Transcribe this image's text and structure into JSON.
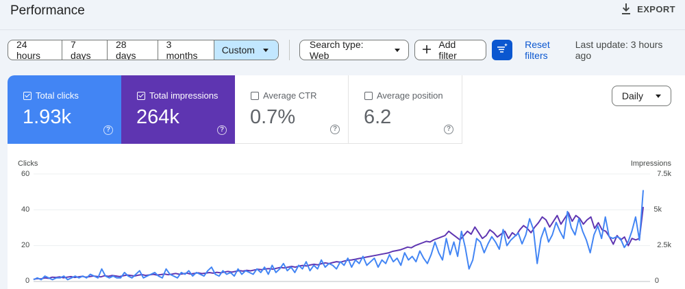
{
  "header": {
    "title": "Performance",
    "export_label": "EXPORT"
  },
  "toolbar": {
    "ranges": [
      "24 hours",
      "7 days",
      "28 days",
      "3 months"
    ],
    "custom_label": "Custom",
    "search_type": "Search type: Web",
    "add_filter": "Add filter",
    "reset_filters": "Reset filters",
    "last_update": "Last update: 3 hours ago"
  },
  "metrics": {
    "clicks": {
      "label": "Total clicks",
      "value": "1.93k",
      "checked": true,
      "color": "#4285f4"
    },
    "impressions": {
      "label": "Total impressions",
      "value": "264k",
      "checked": true,
      "color": "#5e35b1"
    },
    "ctr": {
      "label": "Average CTR",
      "value": "0.7%",
      "checked": false
    },
    "position": {
      "label": "Average position",
      "value": "6.2",
      "checked": false
    }
  },
  "granularity": "Daily",
  "chart_data": {
    "type": "line",
    "left_axis": {
      "label": "Clicks",
      "ticks": [
        "60",
        "40",
        "20",
        "0"
      ],
      "ylim": [
        0,
        60
      ]
    },
    "right_axis": {
      "label": "Impressions",
      "ticks": [
        "7.5k",
        "5k",
        "2.5k",
        "0"
      ],
      "ylim": [
        0,
        7500
      ]
    },
    "series": [
      {
        "axis": "left",
        "color": "#4285f4",
        "values": [
          1,
          2,
          1,
          3,
          2,
          1,
          2,
          2,
          3,
          1,
          2,
          3,
          2,
          3,
          2,
          4,
          3,
          2,
          7,
          3,
          2,
          3,
          2,
          2,
          5,
          3,
          2,
          4,
          6,
          2,
          3,
          4,
          5,
          3,
          2,
          7,
          4,
          3,
          2,
          5,
          4,
          6,
          3,
          5,
          4,
          3,
          6,
          8,
          4,
          3,
          6,
          4,
          5,
          3,
          7,
          4,
          6,
          5,
          4,
          7,
          5,
          8,
          4,
          9,
          5,
          7,
          10,
          6,
          8,
          5,
          9,
          7,
          11,
          6,
          9,
          7,
          12,
          8,
          10,
          9,
          7,
          11,
          9,
          13,
          8,
          12,
          10,
          14,
          9,
          11,
          13,
          8,
          12,
          10,
          15,
          11,
          13,
          9,
          16,
          12,
          14,
          11,
          17,
          13,
          10,
          15,
          22,
          16,
          12,
          24,
          15,
          22,
          14,
          28,
          19,
          7,
          12,
          24,
          22,
          16,
          21,
          25,
          22,
          18,
          29,
          20,
          23,
          25,
          27,
          21,
          26,
          35,
          29,
          10,
          24,
          30,
          22,
          26,
          33,
          28,
          24,
          39,
          30,
          26,
          35,
          28,
          23,
          16,
          26,
          31,
          24,
          36,
          25,
          24,
          25,
          24,
          19,
          22,
          28,
          36,
          23,
          51
        ]
      },
      {
        "axis": "right",
        "color": "#5e35b1",
        "values": [
          150,
          200,
          180,
          250,
          220,
          300,
          280,
          320,
          260,
          300,
          340,
          280,
          320,
          360,
          300,
          340,
          380,
          350,
          320,
          400,
          360,
          420,
          380,
          340,
          400,
          450,
          420,
          380,
          440,
          480,
          420,
          460,
          500,
          450,
          480,
          520,
          470,
          510,
          560,
          500,
          540,
          580,
          520,
          560,
          600,
          550,
          580,
          620,
          580,
          640,
          600,
          660,
          700,
          650,
          700,
          760,
          720,
          780,
          740,
          800,
          850,
          820,
          880,
          900,
          860,
          920,
          980,
          940,
          1000,
          1050,
          1000,
          1080,
          1120,
          1080,
          1150,
          1200,
          1160,
          1240,
          1300,
          1250,
          1320,
          1380,
          1340,
          1420,
          1480,
          1500,
          1550,
          1600,
          1650,
          1700,
          1750,
          1800,
          1850,
          1900,
          1950,
          2000,
          2100,
          2150,
          2200,
          2300,
          2400,
          2350,
          2500,
          2600,
          2700,
          2800,
          2750,
          2900,
          3000,
          3100,
          3200,
          3500,
          3300,
          3100,
          2900,
          3200,
          3500,
          3300,
          3800,
          3400,
          3000,
          3200,
          3600,
          3400,
          3100,
          3300,
          3500,
          3000,
          3400,
          3200,
          3600,
          3900,
          3700,
          3400,
          3800,
          4100,
          4500,
          4300,
          3800,
          4200,
          4600,
          4000,
          4400,
          4800,
          4200,
          4600,
          4400,
          4000,
          4300,
          4500,
          3700,
          4100,
          3600,
          3500,
          3100,
          2600,
          3200,
          2900,
          3100,
          2500,
          3000,
          2900,
          3000,
          5200
        ]
      }
    ]
  }
}
